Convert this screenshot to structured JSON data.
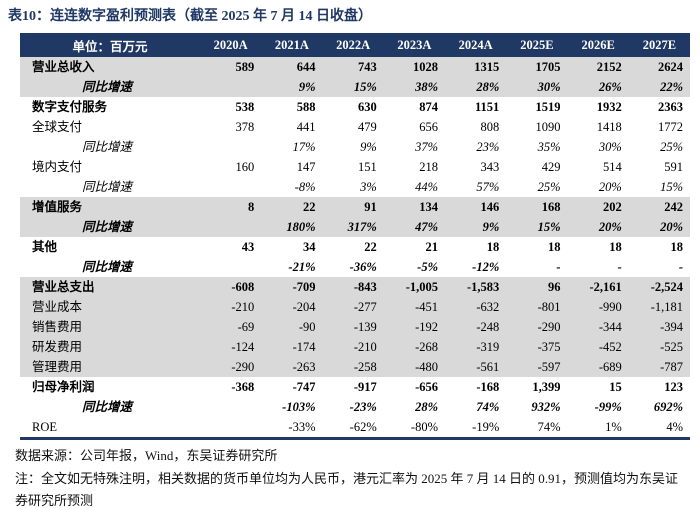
{
  "title": "表10：连连数字盈利预测表（截至 2025 年 7 月 14 日收盘）",
  "table": {
    "unit_label": "单位：百万元",
    "columns": [
      "2020A",
      "2021A",
      "2022A",
      "2023A",
      "2024A",
      "2025E",
      "2026E",
      "2027E"
    ],
    "rows": [
      {
        "label": "营业总收入",
        "bold": true,
        "italic": false,
        "indent": false,
        "shade": true,
        "values": [
          "589",
          "644",
          "743",
          "1028",
          "1315",
          "1705",
          "2152",
          "2624"
        ]
      },
      {
        "label": "同比增速",
        "bold": true,
        "italic": true,
        "indent": true,
        "shade": true,
        "values": [
          "",
          "9%",
          "15%",
          "38%",
          "28%",
          "30%",
          "26%",
          "22%"
        ]
      },
      {
        "label": "数字支付服务",
        "bold": true,
        "italic": false,
        "indent": false,
        "shade": false,
        "values": [
          "538",
          "588",
          "630",
          "874",
          "1151",
          "1519",
          "1932",
          "2363"
        ]
      },
      {
        "label": "全球支付",
        "bold": false,
        "italic": false,
        "indent": false,
        "shade": false,
        "values": [
          "378",
          "441",
          "479",
          "656",
          "808",
          "1090",
          "1418",
          "1772"
        ]
      },
      {
        "label": "同比增速",
        "bold": false,
        "italic": true,
        "indent": true,
        "shade": false,
        "values": [
          "",
          "17%",
          "9%",
          "37%",
          "23%",
          "35%",
          "30%",
          "25%"
        ]
      },
      {
        "label": "境内支付",
        "bold": false,
        "italic": false,
        "indent": false,
        "shade": false,
        "values": [
          "160",
          "147",
          "151",
          "218",
          "343",
          "429",
          "514",
          "591"
        ]
      },
      {
        "label": "同比增速",
        "bold": false,
        "italic": true,
        "indent": true,
        "shade": false,
        "values": [
          "",
          "-8%",
          "3%",
          "44%",
          "57%",
          "25%",
          "20%",
          "15%"
        ]
      },
      {
        "label": "增值服务",
        "bold": true,
        "italic": false,
        "indent": false,
        "shade": true,
        "values": [
          "8",
          "22",
          "91",
          "134",
          "146",
          "168",
          "202",
          "242"
        ]
      },
      {
        "label": "同比增速",
        "bold": true,
        "italic": true,
        "indent": true,
        "shade": true,
        "values": [
          "",
          "180%",
          "317%",
          "47%",
          "9%",
          "15%",
          "20%",
          "20%"
        ]
      },
      {
        "label": "其他",
        "bold": true,
        "italic": false,
        "indent": false,
        "shade": false,
        "values": [
          "43",
          "34",
          "22",
          "21",
          "18",
          "18",
          "18",
          "18"
        ]
      },
      {
        "label": "同比增速",
        "bold": true,
        "italic": true,
        "indent": true,
        "shade": false,
        "values": [
          "",
          "-21%",
          "-36%",
          "-5%",
          "-12%",
          "-",
          "-",
          "-"
        ]
      },
      {
        "label": "营业总支出",
        "bold": true,
        "italic": false,
        "indent": false,
        "shade": true,
        "values": [
          "-608",
          "-709",
          "-843",
          "-1,005",
          "-1,583",
          "96",
          "-2,161",
          "-2,524"
        ]
      },
      {
        "label": "营业成本",
        "bold": false,
        "italic": false,
        "indent": false,
        "shade": true,
        "values": [
          "-210",
          "-204",
          "-277",
          "-451",
          "-632",
          "-801",
          "-990",
          "-1,181"
        ]
      },
      {
        "label": "销售费用",
        "bold": false,
        "italic": false,
        "indent": false,
        "shade": true,
        "values": [
          "-69",
          "-90",
          "-139",
          "-192",
          "-248",
          "-290",
          "-344",
          "-394"
        ]
      },
      {
        "label": "研发费用",
        "bold": false,
        "italic": false,
        "indent": false,
        "shade": true,
        "values": [
          "-124",
          "-174",
          "-210",
          "-268",
          "-319",
          "-375",
          "-452",
          "-525"
        ]
      },
      {
        "label": "管理费用",
        "bold": false,
        "italic": false,
        "indent": false,
        "shade": true,
        "values": [
          "-290",
          "-263",
          "-258",
          "-480",
          "-561",
          "-597",
          "-689",
          "-787"
        ]
      },
      {
        "label": "归母净利润",
        "bold": true,
        "italic": false,
        "indent": false,
        "shade": false,
        "values": [
          "-368",
          "-747",
          "-917",
          "-656",
          "-168",
          "1,399",
          "15",
          "123"
        ]
      },
      {
        "label": "同比增速",
        "bold": true,
        "italic": true,
        "indent": true,
        "shade": false,
        "values": [
          "",
          "-103%",
          "-23%",
          "28%",
          "74%",
          "932%",
          "-99%",
          "692%"
        ]
      },
      {
        "label": "ROE",
        "bold": false,
        "italic": false,
        "indent": false,
        "shade": false,
        "values": [
          "",
          "-33%",
          "-62%",
          "-80%",
          "-19%",
          "74%",
          "1%",
          "4%"
        ]
      }
    ]
  },
  "footer": {
    "source": "数据来源：公司年报，Wind，东吴证券研究所",
    "note": "注：全文如无特殊注明，相关数据的货币单位均为人民币，港元汇率为 2025 年 7 月 14 日的 0.91，预测值均为东吴证券研究所预测"
  },
  "colors": {
    "navy": "#1f3864",
    "row_shade": "#d9d9d9"
  }
}
